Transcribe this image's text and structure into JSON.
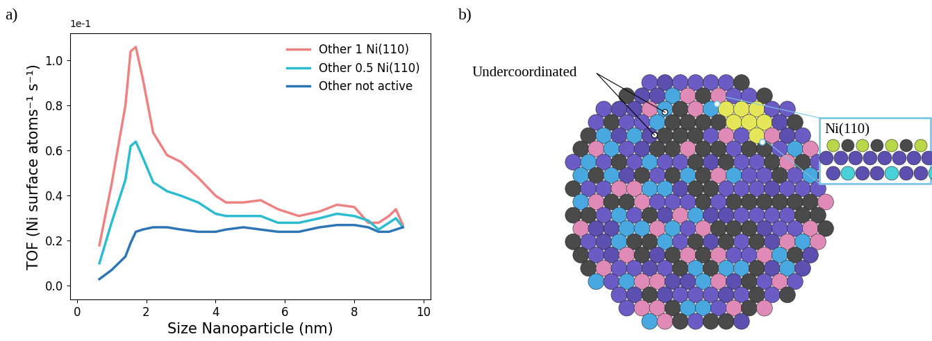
{
  "chart_data": {
    "type": "line",
    "panel_label": "a)",
    "y_offset_text": "1e-1",
    "x_label": "Size Nanoparticle (nm)",
    "y_label": "TOF (Ni surface atoms⁻¹ s⁻¹)",
    "x": [
      0.65,
      1.0,
      1.4,
      1.55,
      1.7,
      1.9,
      2.2,
      2.6,
      3.0,
      3.5,
      4.0,
      4.3,
      4.8,
      5.3,
      5.8,
      6.4,
      7.0,
      7.5,
      8.0,
      8.4,
      8.7,
      9.0,
      9.2,
      9.4
    ],
    "series": [
      {
        "name": "Other 1 Ni(110)",
        "color": "#ee8282",
        "values": [
          0.18,
          0.45,
          0.8,
          1.04,
          1.06,
          0.92,
          0.68,
          0.58,
          0.55,
          0.48,
          0.4,
          0.37,
          0.37,
          0.38,
          0.34,
          0.31,
          0.33,
          0.36,
          0.35,
          0.28,
          0.28,
          0.31,
          0.34,
          0.27
        ]
      },
      {
        "name": "Other 0.5 Ni(110)",
        "color": "#2bbccf",
        "values": [
          0.1,
          0.28,
          0.47,
          0.62,
          0.64,
          0.57,
          0.46,
          0.42,
          0.4,
          0.37,
          0.32,
          0.31,
          0.31,
          0.31,
          0.28,
          0.28,
          0.3,
          0.32,
          0.31,
          0.29,
          0.25,
          0.28,
          0.3,
          0.26
        ]
      },
      {
        "name": "Other not active",
        "color": "#2e75b6",
        "values": [
          0.03,
          0.07,
          0.13,
          0.19,
          0.24,
          0.25,
          0.26,
          0.26,
          0.25,
          0.24,
          0.24,
          0.25,
          0.26,
          0.25,
          0.24,
          0.24,
          0.26,
          0.27,
          0.27,
          0.26,
          0.24,
          0.24,
          0.25,
          0.26
        ]
      }
    ],
    "xlim": [
      -0.2,
      10.2
    ],
    "xticks": [
      0,
      2,
      4,
      6,
      8,
      10
    ],
    "ylim": [
      -0.06,
      1.12
    ],
    "yticks": [
      {
        "value": 0,
        "label": "0.0"
      },
      {
        "value": 0.2,
        "label": "0.2"
      },
      {
        "value": 0.4,
        "label": "0.4"
      },
      {
        "value": 0.6,
        "label": "0.6"
      },
      {
        "value": 0.8,
        "label": "0.8"
      },
      {
        "value": 1.0,
        "label": "1.0"
      }
    ],
    "legend": "upper right",
    "grid": false
  },
  "diagram": {
    "panel_label": "b)",
    "annotations": [
      "Undercoordinated"
    ],
    "inset_title": "Ni(110)"
  }
}
